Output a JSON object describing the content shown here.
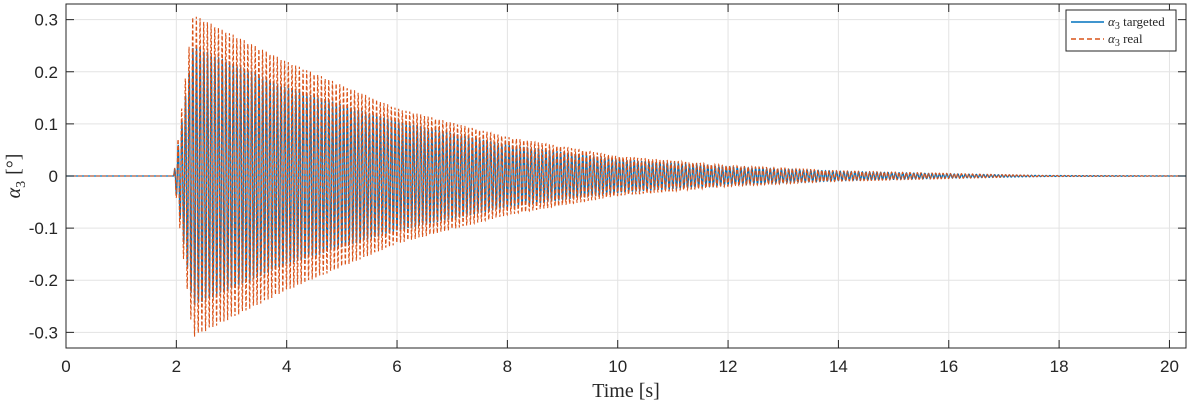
{
  "chart_data": {
    "type": "line",
    "title": "",
    "xlabel": "Time [s]",
    "ylabel": "α3 [°]",
    "xlim": [
      0,
      20.3
    ],
    "ylim": [
      -0.33,
      0.33
    ],
    "xticks": [
      0,
      2,
      4,
      6,
      8,
      10,
      12,
      14,
      16,
      18,
      20
    ],
    "xtick_labels": [
      "0",
      "2",
      "4",
      "6",
      "8",
      "10",
      "12",
      "14",
      "16",
      "18",
      "20"
    ],
    "yticks": [
      -0.3,
      -0.2,
      -0.1,
      0,
      0.1,
      0.2,
      0.3
    ],
    "ytick_labels": [
      "-0.3",
      "-0.2",
      "-0.1",
      "0",
      "0.1",
      "0.2",
      "0.3"
    ],
    "grid": true,
    "legend_position": "top-right",
    "series": [
      {
        "name": "α3 targeted",
        "color": "#0072BD",
        "style": "solid",
        "envelope": {
          "x": [
            0,
            1.95,
            2.3,
            4,
            6,
            8,
            10,
            12,
            14,
            16,
            17.7,
            20.3
          ],
          "amp": [
            0,
            0,
            0.25,
            0.17,
            0.105,
            0.06,
            0.032,
            0.017,
            0.009,
            0.004,
            0.001,
            0
          ]
        }
      },
      {
        "name": "α3 real",
        "color": "#D95319",
        "style": "dashed",
        "envelope": {
          "x": [
            0,
            1.95,
            2.3,
            4,
            6,
            8,
            10,
            12,
            14,
            16,
            17.7,
            20.3
          ],
          "amp": [
            0,
            0,
            0.31,
            0.22,
            0.13,
            0.075,
            0.038,
            0.02,
            0.01,
            0.005,
            0.001,
            0
          ]
        }
      }
    ]
  },
  "legend": {
    "item1": {
      "sym": "α",
      "sub": "3",
      "text": " targeted"
    },
    "item2": {
      "sym": "α",
      "sub": "3",
      "text": " real"
    }
  },
  "ylabel_parts": {
    "sym": "α",
    "sub": "3",
    "unit": "[°]"
  }
}
